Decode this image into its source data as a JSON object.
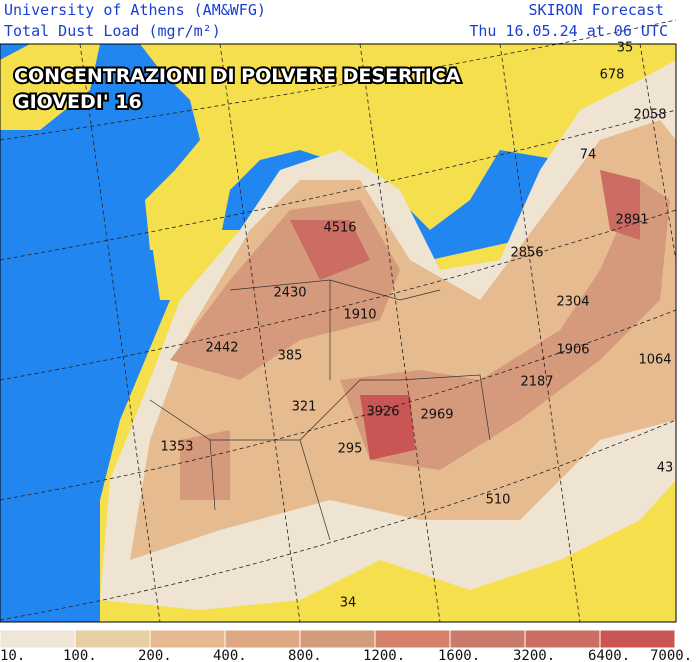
{
  "header": {
    "left_line1": "University of Athens (AM&WFG)",
    "left_line2": "Total Dust Load (mgr/m²)",
    "right_line1": "SKIRON Forecast",
    "right_line2": "Thu 16.05.24 at 06 UTC"
  },
  "overlay": {
    "line1": "CONCENTRAZIONI DI POLVERE DESERTICA",
    "line2": "GIOVEDI' 16"
  },
  "map_labels": [
    "35",
    "678",
    "2058",
    "74",
    "4516",
    "2891",
    "2856",
    "2430",
    "2304",
    "1910",
    "2442",
    "1906",
    "385",
    "1064",
    "2187",
    "321",
    "3926",
    "2969",
    "295",
    "1353",
    "43",
    "510",
    "34"
  ],
  "legend": {
    "labels": [
      "10.",
      "100.",
      "200.",
      "400.",
      "800.",
      "1200.",
      "1600.",
      "3200.",
      "6400.",
      "7000."
    ]
  }
}
